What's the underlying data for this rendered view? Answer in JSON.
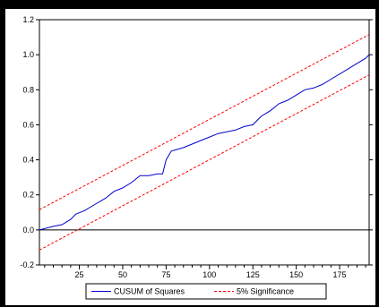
{
  "chart_data": {
    "type": "line",
    "title": "",
    "xlabel": "",
    "ylabel": "",
    "xlim": [
      2,
      192
    ],
    "ylim": [
      -0.2,
      1.2
    ],
    "x_ticks": [
      25,
      50,
      75,
      100,
      125,
      150,
      175
    ],
    "y_ticks": [
      -0.2,
      0.0,
      0.2,
      0.4,
      0.6,
      0.8,
      1.0,
      1.2
    ],
    "y_tick_labels": [
      "-0.2",
      "0.0",
      "0.2",
      "0.4",
      "0.6",
      "0.8",
      "1.0",
      "1.2"
    ],
    "grid": false,
    "zero_line": true,
    "legend_position": "bottom-center",
    "series": [
      {
        "name": "CUSUM of Squares",
        "color": "#0000cc",
        "style": "solid",
        "x": [
          2,
          10,
          15,
          20,
          23,
          28,
          33,
          40,
          45,
          50,
          55,
          60,
          65,
          70,
          73,
          75,
          78,
          85,
          90,
          95,
          100,
          105,
          110,
          115,
          120,
          125,
          130,
          135,
          140,
          145,
          150,
          155,
          160,
          165,
          170,
          175,
          180,
          185,
          190,
          192
        ],
        "y": [
          0.0,
          0.02,
          0.03,
          0.06,
          0.09,
          0.11,
          0.14,
          0.18,
          0.22,
          0.24,
          0.27,
          0.31,
          0.31,
          0.32,
          0.32,
          0.4,
          0.45,
          0.47,
          0.49,
          0.51,
          0.53,
          0.55,
          0.56,
          0.57,
          0.59,
          0.6,
          0.65,
          0.68,
          0.72,
          0.74,
          0.77,
          0.8,
          0.81,
          0.83,
          0.86,
          0.89,
          0.92,
          0.95,
          0.98,
          1.0
        ]
      },
      {
        "name": "5% Significance",
        "color": "#ff0000",
        "style": "dashed",
        "x": [
          2,
          192
        ],
        "y": [
          0.115,
          1.115
        ]
      },
      {
        "name": "5% Significance lower",
        "color": "#ff0000",
        "style": "dashed",
        "x": [
          2,
          192
        ],
        "y": [
          -0.115,
          0.885
        ]
      }
    ],
    "legend": [
      {
        "label": "CUSUM of Squares",
        "color": "#0000cc",
        "style": "solid"
      },
      {
        "label": "5% Significance",
        "color": "#ff0000",
        "style": "dashed"
      }
    ]
  }
}
